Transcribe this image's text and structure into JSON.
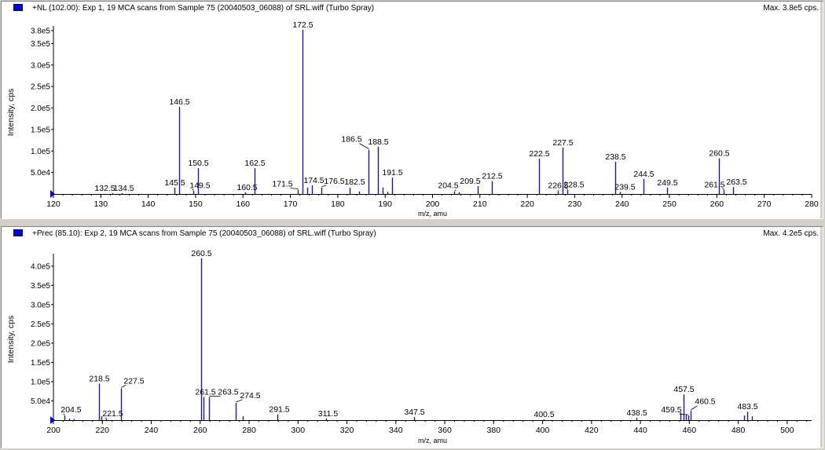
{
  "colors": {
    "bar": "#1a1a9c",
    "axis": "#000000",
    "legend": "#0000c8",
    "background": "#ffffff",
    "frame": "#d4d0c8"
  },
  "chart_data": [
    {
      "type": "bar",
      "title": "+NL (102.00): Exp 1, 19 MCA scans from Sample 75 (20040503_06088) of SRL.wiff (Turbo Spray)",
      "max_label": "Max. 3.8e5 cps.",
      "xlabel": "m/z, amu",
      "ylabel": "Intensity, cps",
      "xlim": [
        120,
        280
      ],
      "ylim": [
        0,
        380000
      ],
      "x_ticks": [
        120,
        130,
        140,
        150,
        160,
        170,
        180,
        190,
        200,
        210,
        220,
        230,
        240,
        250,
        260,
        270,
        280
      ],
      "y_ticks": [
        {
          "label": "5.0e4",
          "value": 50000
        },
        {
          "label": "1.0e5",
          "value": 100000
        },
        {
          "label": "1.5e5",
          "value": 150000
        },
        {
          "label": "2.0e5",
          "value": 200000
        },
        {
          "label": "2.5e5",
          "value": 250000
        },
        {
          "label": "3.0e5",
          "value": 300000
        },
        {
          "label": "3.5e5",
          "value": 350000
        },
        {
          "label": "3.8e5",
          "value": 380000
        }
      ],
      "peaks": [
        {
          "x": 132.5,
          "y": 2000,
          "label": "132.5"
        },
        {
          "x": 134.5,
          "y": 2000,
          "label": "134.5"
        },
        {
          "x": 145.5,
          "y": 15000,
          "label": "145.5"
        },
        {
          "x": 146.5,
          "y": 203000,
          "label": "146.5"
        },
        {
          "x": 149.5,
          "y": 8000,
          "label": "149.5"
        },
        {
          "x": 150.5,
          "y": 60000,
          "label": "150.5"
        },
        {
          "x": 160.5,
          "y": 4000,
          "label": "160.5"
        },
        {
          "x": 162.5,
          "y": 60000,
          "label": "162.5"
        },
        {
          "x": 171.5,
          "y": 10000,
          "label": "171.5"
        },
        {
          "x": 172.5,
          "y": 382000,
          "label": "172.5"
        },
        {
          "x": 173.5,
          "y": 15000,
          "label": ""
        },
        {
          "x": 174.5,
          "y": 20000,
          "label": "174.5"
        },
        {
          "x": 176.5,
          "y": 15000,
          "label": "176.5"
        },
        {
          "x": 182.5,
          "y": 15000,
          "label": "182.5"
        },
        {
          "x": 184.5,
          "y": 6000,
          "label": ""
        },
        {
          "x": 186.5,
          "y": 103000,
          "label": "186.5"
        },
        {
          "x": 188.5,
          "y": 110000,
          "label": "188.5"
        },
        {
          "x": 189.5,
          "y": 15000,
          "label": ""
        },
        {
          "x": 190.5,
          "y": 5000,
          "label": ""
        },
        {
          "x": 191.5,
          "y": 38000,
          "label": "191.5"
        },
        {
          "x": 204.5,
          "y": 6000,
          "label": "204.5"
        },
        {
          "x": 205.5,
          "y": 4000,
          "label": ""
        },
        {
          "x": 209.5,
          "y": 18000,
          "label": "209.5"
        },
        {
          "x": 212.5,
          "y": 30000,
          "label": "212.5"
        },
        {
          "x": 222.5,
          "y": 82000,
          "label": "222.5"
        },
        {
          "x": 226.5,
          "y": 8000,
          "label": "226.5"
        },
        {
          "x": 227.5,
          "y": 108000,
          "label": "227.5"
        },
        {
          "x": 228.5,
          "y": 10000,
          "label": "228.5"
        },
        {
          "x": 238.5,
          "y": 75000,
          "label": "238.5"
        },
        {
          "x": 239.5,
          "y": 5000,
          "label": "239.5"
        },
        {
          "x": 244.5,
          "y": 35000,
          "label": "244.5"
        },
        {
          "x": 249.5,
          "y": 15000,
          "label": "249.5"
        },
        {
          "x": 260.5,
          "y": 83000,
          "label": "260.5"
        },
        {
          "x": 261.5,
          "y": 10000,
          "label": "261.5"
        },
        {
          "x": 263.5,
          "y": 16000,
          "label": "263.5"
        }
      ]
    },
    {
      "type": "bar",
      "title": "+Prec (85.10): Exp 2, 19 MCA scans from Sample 75 (20040503_06088) of SRL.wiff (Turbo Spray)",
      "max_label": "Max. 4.2e5 cps.",
      "xlabel": "m/z, amu",
      "ylabel": "Intensity, cps",
      "xlim": [
        200,
        510
      ],
      "ylim": [
        0,
        420000
      ],
      "x_ticks": [
        200,
        220,
        240,
        260,
        280,
        300,
        320,
        340,
        360,
        380,
        400,
        420,
        440,
        460,
        480,
        500
      ],
      "y_ticks": [
        {
          "label": "5.0e4",
          "value": 50000
        },
        {
          "label": "1.0e5",
          "value": 100000
        },
        {
          "label": "1.5e5",
          "value": 150000
        },
        {
          "label": "2.0e5",
          "value": 200000
        },
        {
          "label": "2.5e5",
          "value": 250000
        },
        {
          "label": "3.0e5",
          "value": 300000
        },
        {
          "label": "3.5e5",
          "value": 350000
        },
        {
          "label": "4.0e5",
          "value": 400000
        }
      ],
      "peaks": [
        {
          "x": 204.5,
          "y": 12000,
          "label": "204.5"
        },
        {
          "x": 206.5,
          "y": 4000,
          "label": ""
        },
        {
          "x": 208.5,
          "y": 3000,
          "label": ""
        },
        {
          "x": 218.5,
          "y": 95000,
          "label": "218.5"
        },
        {
          "x": 219.5,
          "y": 10000,
          "label": ""
        },
        {
          "x": 221.5,
          "y": 4000,
          "label": "221.5"
        },
        {
          "x": 227.5,
          "y": 83000,
          "label": "227.5"
        },
        {
          "x": 260.5,
          "y": 420000,
          "label": "260.5"
        },
        {
          "x": 261.5,
          "y": 60000,
          "label": "261.5"
        },
        {
          "x": 263.5,
          "y": 60000,
          "label": "263.5"
        },
        {
          "x": 274.5,
          "y": 45000,
          "label": "274.5"
        },
        {
          "x": 277.5,
          "y": 10000,
          "label": ""
        },
        {
          "x": 291.5,
          "y": 15000,
          "label": "291.5"
        },
        {
          "x": 311.5,
          "y": 4000,
          "label": "311.5"
        },
        {
          "x": 347.5,
          "y": 8000,
          "label": "347.5"
        },
        {
          "x": 400.5,
          "y": 2000,
          "label": "400.5"
        },
        {
          "x": 438.5,
          "y": 6000,
          "label": "438.5"
        },
        {
          "x": 456.5,
          "y": 20000,
          "label": ""
        },
        {
          "x": 457.5,
          "y": 67000,
          "label": "457.5"
        },
        {
          "x": 458.5,
          "y": 15000,
          "label": ""
        },
        {
          "x": 459.5,
          "y": 12000,
          "label": "459.5"
        },
        {
          "x": 460.5,
          "y": 25000,
          "label": "460.5"
        },
        {
          "x": 482.5,
          "y": 12000,
          "label": ""
        },
        {
          "x": 483.5,
          "y": 22000,
          "label": "483.5"
        },
        {
          "x": 485.5,
          "y": 10000,
          "label": ""
        }
      ]
    }
  ]
}
